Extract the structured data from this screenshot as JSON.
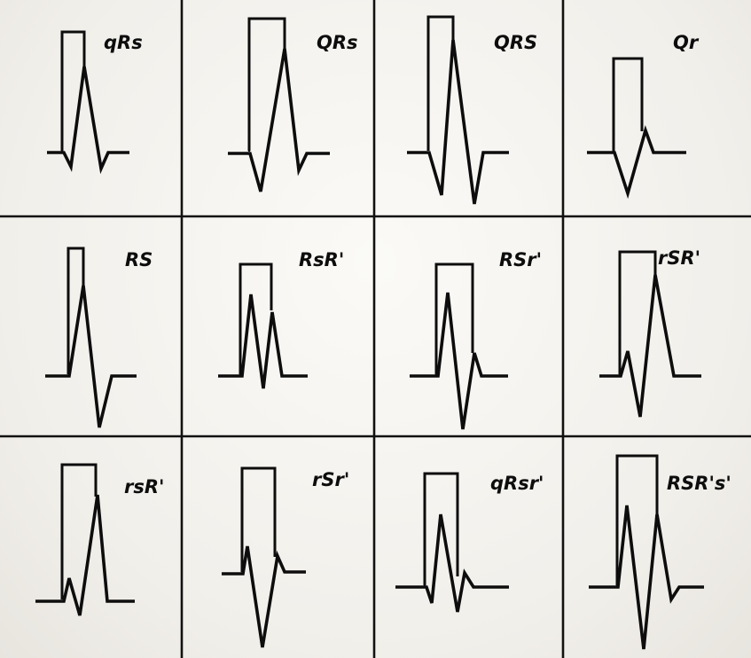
{
  "panels": [
    {
      "label": "qRs"
    },
    {
      "label": "QRs"
    },
    {
      "label": "QRS"
    },
    {
      "label": "Qr"
    },
    {
      "label": "RS"
    },
    {
      "label": "RsR'"
    },
    {
      "label": "RSr'"
    },
    {
      "label": "rSR'"
    },
    {
      "label": "rsR'"
    },
    {
      "label": "rSr'"
    },
    {
      "label": "qRsr'"
    },
    {
      "label": "RSR's'"
    }
  ]
}
